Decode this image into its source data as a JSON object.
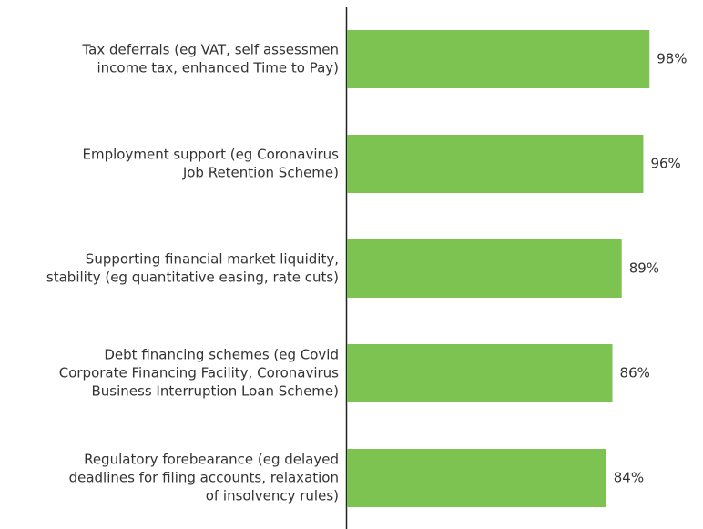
{
  "chart_data": {
    "type": "barh",
    "categories": [
      [
        "Tax deferrals (eg VAT, self assessmen",
        "income tax, enhanced Time to Pay)"
      ],
      [
        "Employment support (eg Coronavirus",
        "Job Retention Scheme)"
      ],
      [
        "Supporting financial market liquidity,",
        "stability (eg quantitative easing, rate cuts)"
      ],
      [
        "Debt financing schemes (eg Covid",
        "Corporate Financing Facility, Coronavirus",
        "Business Interruption Loan Scheme)"
      ],
      [
        "Regulatory forebearance (eg delayed",
        "deadlines for filing accounts, relaxation",
        "of insolvency rules)"
      ]
    ],
    "values": [
      98,
      96,
      89,
      86,
      84
    ],
    "value_labels": [
      "98%",
      "96%",
      "89%",
      "86%",
      "84%"
    ],
    "color": "#7dc352",
    "xlim": [
      0,
      100
    ]
  }
}
